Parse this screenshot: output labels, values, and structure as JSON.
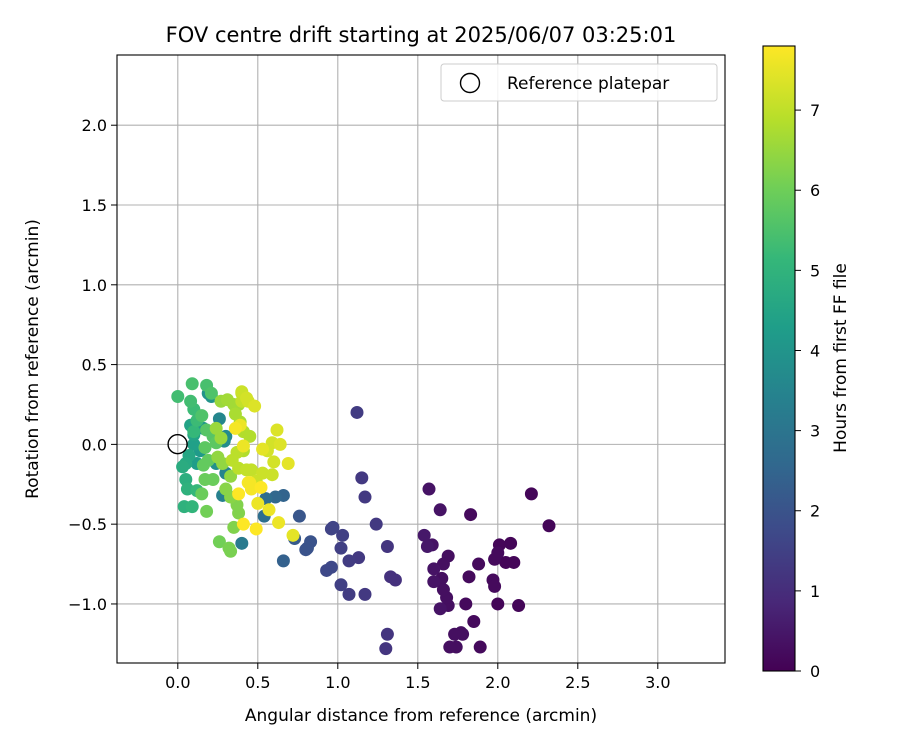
{
  "chart_data": {
    "type": "scatter",
    "title": "FOV centre drift starting at 2025/06/07 03:25:01",
    "xlabel": "Angular distance from reference (arcmin)",
    "ylabel": "Rotation from reference (arcmin)",
    "xlim": [
      -0.38,
      3.42
    ],
    "ylim": [
      -1.37,
      2.44
    ],
    "xticks": [
      0.0,
      0.5,
      1.0,
      1.5,
      2.0,
      2.5,
      3.0
    ],
    "xtick_labels": [
      "0.0",
      "0.5",
      "1.0",
      "1.5",
      "2.0",
      "2.5",
      "3.0"
    ],
    "yticks": [
      -1.0,
      -0.5,
      0.0,
      0.5,
      1.0,
      1.5,
      2.0
    ],
    "ytick_labels": [
      "−1.0",
      "−0.5",
      "0.0",
      "0.5",
      "1.0",
      "1.5",
      "2.0"
    ],
    "grid": true,
    "legend": {
      "position": "top-right",
      "entries": [
        "Reference platepar"
      ]
    },
    "reference_point": {
      "x": 0.0,
      "y": 0.0
    },
    "colorbar": {
      "label": "Hours from first FF file",
      "colormap": "viridis",
      "range": [
        0,
        7.8
      ],
      "ticks": [
        0,
        1,
        2,
        3,
        4,
        5,
        6,
        7
      ],
      "tick_labels": [
        "0",
        "1",
        "2",
        "3",
        "4",
        "5",
        "6",
        "7"
      ]
    },
    "points": [
      [
        2.32,
        -0.51,
        0.1
      ],
      [
        2.21,
        -0.31,
        0.1
      ],
      [
        2.13,
        -1.01,
        0.1
      ],
      [
        2.1,
        -0.74,
        0.1
      ],
      [
        2.08,
        -0.62,
        0.1
      ],
      [
        2.05,
        -0.74,
        0.1
      ],
      [
        2.01,
        -0.63,
        0.1
      ],
      [
        2.0,
        -0.68,
        0.2
      ],
      [
        2.0,
        -1.0,
        0.1
      ],
      [
        1.98,
        -0.72,
        0.2
      ],
      [
        1.97,
        -0.85,
        0.2
      ],
      [
        1.98,
        -0.89,
        0.2
      ],
      [
        1.89,
        -1.27,
        0.2
      ],
      [
        1.88,
        -0.75,
        0.2
      ],
      [
        1.85,
        -1.11,
        0.2
      ],
      [
        1.83,
        -0.44,
        0.2
      ],
      [
        1.82,
        -0.83,
        0.2
      ],
      [
        1.8,
        -1.0,
        0.2
      ],
      [
        1.78,
        -1.19,
        0.3
      ],
      [
        1.77,
        -1.18,
        0.3
      ],
      [
        1.74,
        -1.27,
        0.3
      ],
      [
        1.73,
        -1.19,
        0.3
      ],
      [
        1.7,
        -1.27,
        0.3
      ],
      [
        1.69,
        -1.01,
        0.3
      ],
      [
        1.68,
        -0.96,
        0.3
      ],
      [
        1.69,
        -0.7,
        0.3
      ],
      [
        1.66,
        -0.75,
        0.3
      ],
      [
        1.65,
        -0.84,
        0.3
      ],
      [
        1.66,
        -0.91,
        0.3
      ],
      [
        1.64,
        -1.03,
        0.4
      ],
      [
        1.64,
        -0.41,
        0.4
      ],
      [
        1.6,
        -0.78,
        0.4
      ],
      [
        1.6,
        -0.86,
        0.4
      ],
      [
        1.59,
        -0.63,
        0.4
      ],
      [
        1.57,
        -0.28,
        0.4
      ],
      [
        1.56,
        -0.64,
        0.5
      ],
      [
        1.54,
        -0.57,
        0.5
      ],
      [
        1.36,
        -0.85,
        1.1
      ],
      [
        1.33,
        -0.83,
        1.1
      ],
      [
        1.31,
        -1.19,
        1.2
      ],
      [
        1.3,
        -1.28,
        1.2
      ],
      [
        1.31,
        -0.64,
        1.2
      ],
      [
        1.24,
        -0.5,
        1.3
      ],
      [
        1.17,
        -0.33,
        1.3
      ],
      [
        1.17,
        -0.94,
        1.3
      ],
      [
        1.15,
        -0.21,
        1.3
      ],
      [
        1.13,
        -0.71,
        1.3
      ],
      [
        1.12,
        0.2,
        1.4
      ],
      [
        1.07,
        -0.73,
        1.4
      ],
      [
        1.07,
        -0.94,
        1.4
      ],
      [
        1.03,
        -0.57,
        1.5
      ],
      [
        1.02,
        -0.65,
        1.5
      ],
      [
        1.02,
        -0.88,
        1.5
      ],
      [
        0.97,
        -0.52,
        1.6
      ],
      [
        0.96,
        -0.53,
        1.6
      ],
      [
        0.96,
        -0.77,
        1.7
      ],
      [
        0.93,
        -0.79,
        1.7
      ],
      [
        0.83,
        -0.61,
        2.0
      ],
      [
        0.81,
        -0.65,
        2.0
      ],
      [
        0.8,
        -0.66,
        2.0
      ],
      [
        0.76,
        -0.45,
        2.1
      ],
      [
        0.73,
        -0.59,
        2.2
      ],
      [
        0.66,
        -0.73,
        2.4
      ],
      [
        0.66,
        -0.32,
        2.5
      ],
      [
        0.61,
        -0.33,
        2.6
      ],
      [
        0.55,
        -0.34,
        2.8
      ],
      [
        0.54,
        -0.45,
        2.8
      ],
      [
        0.4,
        -0.62,
        3.2
      ],
      [
        0.28,
        -0.32,
        3.4
      ],
      [
        0.3,
        -0.18,
        3.5
      ],
      [
        0.26,
        0.16,
        3.6
      ],
      [
        0.3,
        0.05,
        3.7
      ],
      [
        0.29,
        0.02,
        3.8
      ],
      [
        0.24,
        -0.12,
        3.9
      ],
      [
        0.21,
        0.3,
        4.0
      ],
      [
        0.19,
        0.32,
        4.0
      ],
      [
        0.16,
        0.1,
        4.1
      ],
      [
        0.14,
        -0.04,
        4.2
      ],
      [
        0.12,
        -0.12,
        4.3
      ],
      [
        0.1,
        0.0,
        4.4
      ],
      [
        0.08,
        0.12,
        4.5
      ],
      [
        0.1,
        0.06,
        4.5
      ],
      [
        0.07,
        -0.07,
        4.6
      ],
      [
        0.05,
        -0.12,
        4.7
      ],
      [
        0.03,
        -0.14,
        4.8
      ],
      [
        0.05,
        -0.22,
        4.9
      ],
      [
        0.06,
        -0.28,
        5.0
      ],
      [
        0.04,
        -0.39,
        5.0
      ],
      [
        0.09,
        -0.39,
        5.1
      ],
      [
        0.12,
        -0.29,
        5.2
      ],
      [
        0.1,
        0.08,
        5.2
      ],
      [
        0.12,
        0.15,
        5.3
      ],
      [
        0.1,
        0.22,
        5.3
      ],
      [
        0.08,
        0.27,
        5.4
      ],
      [
        0.0,
        0.3,
        5.4
      ],
      [
        0.09,
        0.38,
        5.5
      ],
      [
        0.18,
        0.37,
        5.5
      ],
      [
        0.21,
        0.32,
        5.6
      ],
      [
        0.15,
        0.18,
        5.6
      ],
      [
        0.18,
        0.09,
        5.7
      ],
      [
        0.22,
        0.05,
        5.7
      ],
      [
        0.24,
        0.01,
        5.8
      ],
      [
        0.17,
        -0.02,
        5.8
      ],
      [
        0.19,
        -0.1,
        5.9
      ],
      [
        0.16,
        -0.13,
        5.9
      ],
      [
        0.17,
        -0.22,
        6.0
      ],
      [
        0.22,
        -0.22,
        6.0
      ],
      [
        0.15,
        -0.31,
        6.0
      ],
      [
        0.18,
        -0.42,
        6.1
      ],
      [
        0.26,
        -0.61,
        6.1
      ],
      [
        0.32,
        -0.65,
        6.2
      ],
      [
        0.33,
        -0.67,
        6.2
      ],
      [
        0.35,
        -0.52,
        6.3
      ],
      [
        0.38,
        -0.43,
        6.3
      ],
      [
        0.37,
        -0.38,
        6.3
      ],
      [
        0.33,
        -0.33,
        6.4
      ],
      [
        0.3,
        -0.28,
        6.4
      ],
      [
        0.33,
        -0.2,
        6.5
      ],
      [
        0.28,
        -0.12,
        6.5
      ],
      [
        0.25,
        -0.08,
        6.5
      ],
      [
        0.27,
        0.04,
        6.6
      ],
      [
        0.24,
        0.1,
        6.6
      ],
      [
        0.27,
        0.27,
        6.6
      ],
      [
        0.31,
        0.28,
        6.7
      ],
      [
        0.35,
        0.25,
        6.7
      ],
      [
        0.38,
        0.25,
        6.7
      ],
      [
        0.36,
        0.19,
        6.8
      ],
      [
        0.39,
        0.14,
        6.8
      ],
      [
        0.41,
        0.08,
        6.9
      ],
      [
        0.45,
        0.05,
        6.9
      ],
      [
        0.41,
        -0.04,
        6.9
      ],
      [
        0.37,
        -0.05,
        7.0
      ],
      [
        0.34,
        -0.1,
        7.0
      ],
      [
        0.38,
        -0.15,
        7.0
      ],
      [
        0.43,
        -0.16,
        7.1
      ],
      [
        0.46,
        -0.16,
        7.1
      ],
      [
        0.49,
        -0.23,
        7.2
      ],
      [
        0.53,
        -0.18,
        7.2
      ],
      [
        0.59,
        -0.19,
        7.2
      ],
      [
        0.6,
        -0.11,
        7.3
      ],
      [
        0.56,
        -0.04,
        7.3
      ],
      [
        0.59,
        0.01,
        7.3
      ],
      [
        0.62,
        0.09,
        7.4
      ],
      [
        0.64,
        0.0,
        7.4
      ],
      [
        0.69,
        -0.12,
        7.5
      ],
      [
        0.72,
        -0.57,
        7.5
      ],
      [
        0.63,
        -0.49,
        7.6
      ],
      [
        0.57,
        -0.41,
        7.6
      ],
      [
        0.5,
        -0.37,
        7.6
      ],
      [
        0.46,
        -0.28,
        7.7
      ],
      [
        0.45,
        -0.24,
        7.7
      ],
      [
        0.44,
        -0.24,
        7.7
      ],
      [
        0.52,
        -0.27,
        7.8
      ],
      [
        0.38,
        -0.31,
        7.8
      ],
      [
        0.49,
        -0.53,
        7.8
      ],
      [
        0.41,
        -0.5,
        7.8
      ],
      [
        0.4,
        0.32,
        7.0
      ],
      [
        0.4,
        0.27,
        7.1
      ],
      [
        0.4,
        0.33,
        7.2
      ],
      [
        0.44,
        0.27,
        7.3
      ],
      [
        0.43,
        0.29,
        7.3
      ],
      [
        0.48,
        0.24,
        7.4
      ],
      [
        0.53,
        -0.03,
        7.5
      ],
      [
        0.39,
        0.12,
        7.6
      ],
      [
        0.41,
        -0.01,
        7.6
      ],
      [
        0.36,
        0.1,
        7.7
      ]
    ]
  }
}
